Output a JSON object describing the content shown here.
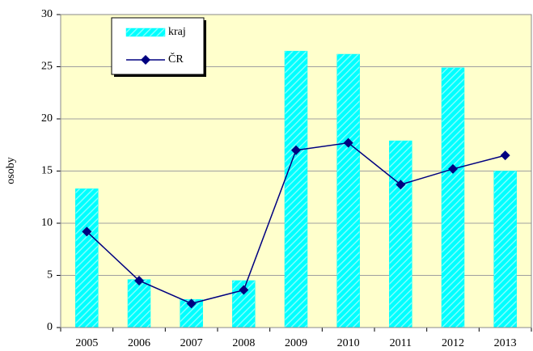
{
  "chart_data": {
    "type": "combo",
    "y_label": "osoby",
    "categories": [
      "2005",
      "2006",
      "2007",
      "2008",
      "2009",
      "2010",
      "2011",
      "2012",
      "2013"
    ],
    "series": [
      {
        "name": "kraj",
        "type": "bar",
        "color": "#00ffff",
        "values": [
          13.3,
          4.6,
          2.7,
          4.5,
          26.5,
          26.2,
          17.9,
          24.9,
          15.0
        ]
      },
      {
        "name": "ČR",
        "type": "line",
        "color": "#000080",
        "values": [
          9.2,
          4.5,
          2.3,
          3.6,
          17.0,
          17.7,
          13.7,
          15.2,
          16.5
        ]
      }
    ],
    "ylim": [
      0,
      30
    ],
    "yticks": [
      0,
      5,
      10,
      15,
      20,
      25,
      30
    ],
    "grid": true,
    "legend": "upper left"
  }
}
